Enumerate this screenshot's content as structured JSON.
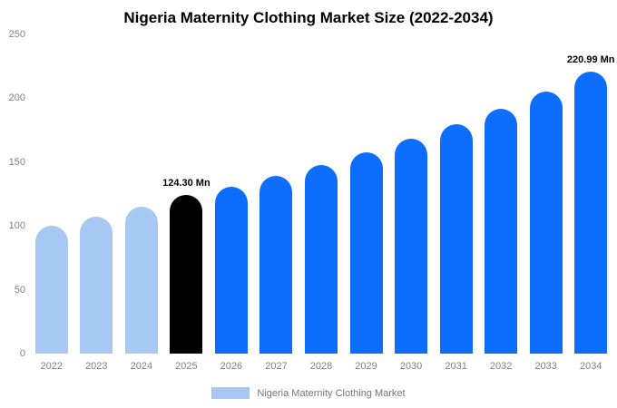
{
  "colors": {
    "light": "#a6c8f3",
    "primary": "#0d6efd",
    "highlight": "#000000"
  },
  "legend": {
    "label": "Nigeria Maternity Clothing Market"
  },
  "chart_data": {
    "type": "bar",
    "title": "Nigeria Maternity Clothing Market Size (2022-2034)",
    "categories": [
      "2022",
      "2023",
      "2024",
      "2025",
      "2026",
      "2027",
      "2028",
      "2029",
      "2030",
      "2031",
      "2032",
      "2033",
      "2034"
    ],
    "values": [
      100,
      107,
      115,
      124.3,
      131,
      139,
      148,
      158,
      168,
      180,
      192,
      205,
      220.99
    ],
    "bar_colors": [
      "light",
      "light",
      "light",
      "highlight",
      "primary",
      "primary",
      "primary",
      "primary",
      "primary",
      "primary",
      "primary",
      "primary",
      "primary"
    ],
    "annotations": [
      {
        "index": 3,
        "text": "124.30 Mn"
      },
      {
        "index": 12,
        "text": "220.99 Mn"
      }
    ],
    "xlabel": "",
    "ylabel": "",
    "ylim": [
      0,
      250
    ],
    "yticks": [
      0,
      50,
      100,
      150,
      200,
      250
    ],
    "grid": false,
    "legend_position": "bottom"
  }
}
